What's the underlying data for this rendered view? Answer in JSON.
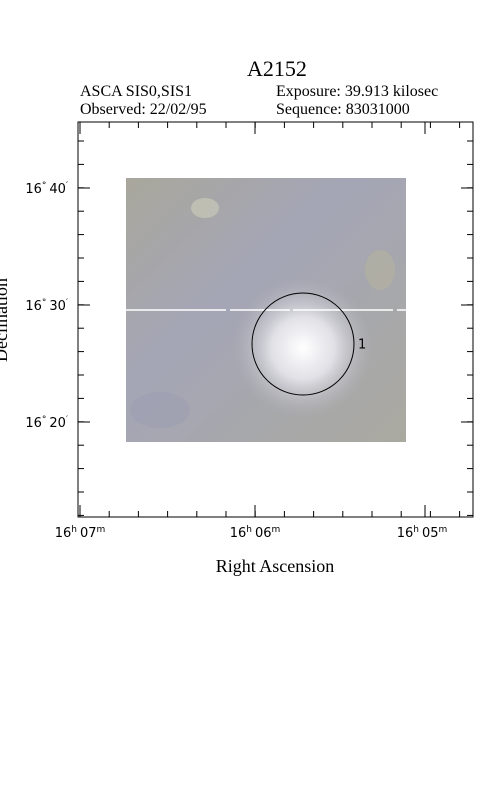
{
  "title": "A2152",
  "info": {
    "instrument": "ASCA SIS0,SIS1",
    "exposure": "Exposure: 39.913 kilosec",
    "observed": "Observed: 22/02/95",
    "sequence": "Sequence: 83031000"
  },
  "axes": {
    "x_label": "Right Ascension",
    "y_label": "Declination",
    "x_ticks": [
      {
        "major": "16",
        "major_unit": "h",
        "minor": "07",
        "minor_unit": "m"
      },
      {
        "major": "16",
        "major_unit": "h",
        "minor": "06",
        "minor_unit": "m"
      },
      {
        "major": "16",
        "major_unit": "h",
        "minor": "05",
        "minor_unit": "m"
      }
    ],
    "y_ticks": [
      {
        "major": "16",
        "major_unit": "°",
        "minor": "40",
        "minor_unit": "′"
      },
      {
        "major": "16",
        "major_unit": "°",
        "minor": "30",
        "minor_unit": "′"
      },
      {
        "major": "16",
        "major_unit": "°",
        "minor": "20",
        "minor_unit": "′"
      }
    ]
  },
  "regions": [
    {
      "label": "1"
    }
  ]
}
